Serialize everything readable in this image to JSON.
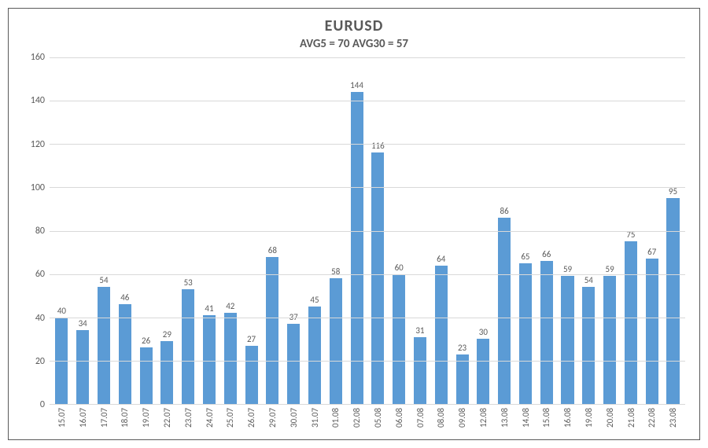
{
  "chart": {
    "type": "bar",
    "title": "EURUSD",
    "subtitle": "AVG5 = 70 AVG30 = 57",
    "categories": [
      "15.07",
      "16.07",
      "17.07",
      "18.07",
      "19.07",
      "22.07",
      "23.07",
      "24.07",
      "25.07",
      "26.07",
      "29.07",
      "30.07",
      "31.07",
      "01.08",
      "02.08",
      "05.08",
      "06.08",
      "07.08",
      "08.08",
      "09.08",
      "12.08",
      "13.08",
      "14.08",
      "15.08",
      "16.08",
      "19.08",
      "20.08",
      "21.08",
      "22.08",
      "23.08"
    ],
    "values": [
      40,
      34,
      54,
      46,
      26,
      29,
      53,
      41,
      42,
      27,
      68,
      37,
      45,
      58,
      144,
      116,
      60,
      31,
      64,
      23,
      30,
      86,
      65,
      66,
      59,
      54,
      59,
      75,
      67,
      95
    ],
    "bar_color": "#5b9bd5",
    "title_color": "#595959",
    "label_color": "#595959",
    "title_fontsize": 20,
    "subtitle_fontsize": 15,
    "value_fontsize": 11,
    "category_fontsize": 11,
    "ylim": [
      0,
      160
    ],
    "ytick_step": 20,
    "yticks": [
      0,
      20,
      40,
      60,
      80,
      100,
      120,
      140,
      160
    ],
    "background_color": "#ffffff",
    "grid_color": "#d9d9d9",
    "axis_color": "#bfbfbf",
    "bar_width": 0.6,
    "border_color": "#595959"
  }
}
